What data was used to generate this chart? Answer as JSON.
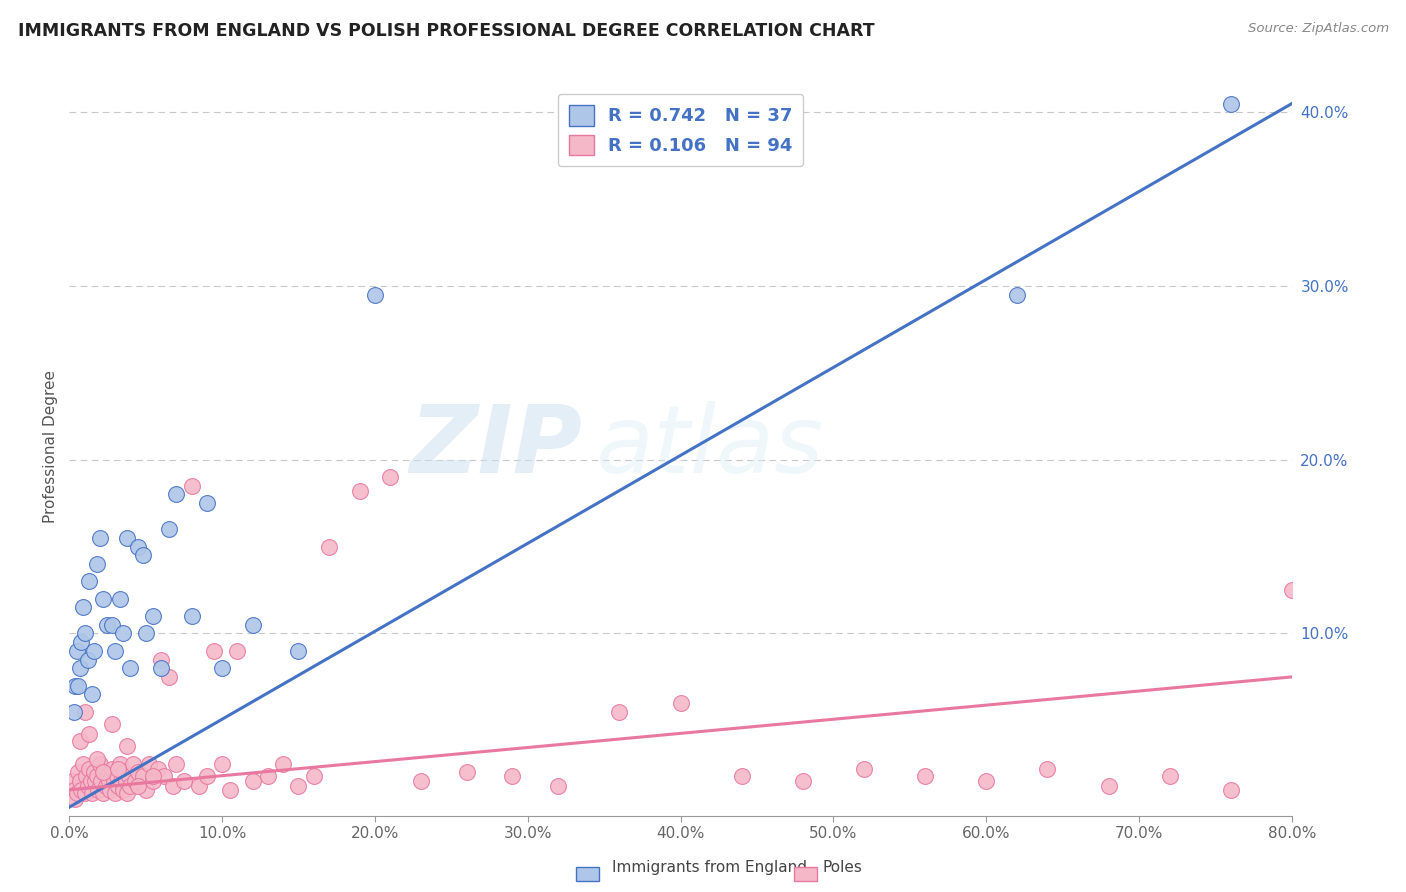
{
  "title": "IMMIGRANTS FROM ENGLAND VS POLISH PROFESSIONAL DEGREE CORRELATION CHART",
  "source": "Source: ZipAtlas.com",
  "ylabel": "Professional Degree",
  "watermark_zip": "ZIP",
  "watermark_atlas": "atlas",
  "xlim": [
    0.0,
    0.8
  ],
  "ylim": [
    -0.005,
    0.42
  ],
  "xtick_vals": [
    0.0,
    0.1,
    0.2,
    0.3,
    0.4,
    0.5,
    0.6,
    0.7,
    0.8
  ],
  "xtick_labels": [
    "0.0%",
    "10.0%",
    "20.0%",
    "30.0%",
    "40.0%",
    "50.0%",
    "60.0%",
    "70.0%",
    "80.0%"
  ],
  "ytick_vals": [
    0.0,
    0.1,
    0.2,
    0.3,
    0.4
  ],
  "ytick_labels": [
    "",
    "10.0%",
    "20.0%",
    "30.0%",
    "40.0%"
  ],
  "england_color": "#aec6e8",
  "england_edge_color": "#4472c4",
  "england_line_color": "#4472c4",
  "poles_color": "#f4b8c8",
  "poles_edge_color": "#e878a0",
  "poles_line_color": "#e878a0",
  "legend_text_color": "#4472c4",
  "r_england": 0.742,
  "n_england": 37,
  "r_poles": 0.106,
  "n_poles": 94,
  "eng_line_x": [
    0.0,
    0.8
  ],
  "eng_line_y": [
    0.0,
    0.405
  ],
  "pol_line_x": [
    0.0,
    0.8
  ],
  "pol_line_y": [
    0.01,
    0.075
  ],
  "england_scatter_x": [
    0.003,
    0.004,
    0.005,
    0.006,
    0.007,
    0.008,
    0.009,
    0.01,
    0.012,
    0.013,
    0.015,
    0.016,
    0.018,
    0.02,
    0.022,
    0.025,
    0.028,
    0.03,
    0.033,
    0.035,
    0.038,
    0.04,
    0.045,
    0.048,
    0.05,
    0.055,
    0.06,
    0.065,
    0.07,
    0.08,
    0.09,
    0.1,
    0.12,
    0.15,
    0.2,
    0.62,
    0.76
  ],
  "england_scatter_y": [
    0.055,
    0.07,
    0.09,
    0.07,
    0.08,
    0.095,
    0.115,
    0.1,
    0.085,
    0.13,
    0.065,
    0.09,
    0.14,
    0.155,
    0.12,
    0.105,
    0.105,
    0.09,
    0.12,
    0.1,
    0.155,
    0.08,
    0.15,
    0.145,
    0.1,
    0.11,
    0.08,
    0.16,
    0.18,
    0.11,
    0.175,
    0.08,
    0.105,
    0.09,
    0.295,
    0.295,
    0.405
  ],
  "poles_scatter_x": [
    0.002,
    0.003,
    0.004,
    0.005,
    0.006,
    0.007,
    0.008,
    0.009,
    0.01,
    0.011,
    0.012,
    0.013,
    0.014,
    0.015,
    0.016,
    0.017,
    0.018,
    0.019,
    0.02,
    0.021,
    0.022,
    0.023,
    0.024,
    0.025,
    0.026,
    0.027,
    0.028,
    0.029,
    0.03,
    0.031,
    0.032,
    0.033,
    0.034,
    0.035,
    0.036,
    0.037,
    0.038,
    0.039,
    0.04,
    0.042,
    0.043,
    0.045,
    0.048,
    0.05,
    0.052,
    0.055,
    0.058,
    0.06,
    0.062,
    0.065,
    0.068,
    0.07,
    0.075,
    0.08,
    0.085,
    0.09,
    0.095,
    0.1,
    0.105,
    0.11,
    0.12,
    0.13,
    0.14,
    0.15,
    0.16,
    0.17,
    0.19,
    0.21,
    0.23,
    0.26,
    0.29,
    0.32,
    0.36,
    0.4,
    0.44,
    0.48,
    0.52,
    0.56,
    0.6,
    0.64,
    0.68,
    0.72,
    0.76,
    0.8,
    0.007,
    0.01,
    0.013,
    0.018,
    0.022,
    0.028,
    0.032,
    0.038,
    0.045,
    0.055
  ],
  "poles_scatter_y": [
    0.015,
    0.01,
    0.005,
    0.008,
    0.02,
    0.015,
    0.01,
    0.025,
    0.008,
    0.018,
    0.012,
    0.022,
    0.015,
    0.008,
    0.02,
    0.015,
    0.018,
    0.01,
    0.025,
    0.015,
    0.008,
    0.02,
    0.012,
    0.018,
    0.015,
    0.01,
    0.022,
    0.015,
    0.008,
    0.018,
    0.012,
    0.025,
    0.015,
    0.01,
    0.02,
    0.015,
    0.008,
    0.018,
    0.012,
    0.025,
    0.015,
    0.02,
    0.018,
    0.01,
    0.025,
    0.015,
    0.022,
    0.085,
    0.018,
    0.075,
    0.012,
    0.025,
    0.015,
    0.185,
    0.012,
    0.018,
    0.09,
    0.025,
    0.01,
    0.09,
    0.015,
    0.018,
    0.025,
    0.012,
    0.018,
    0.15,
    0.182,
    0.19,
    0.015,
    0.02,
    0.018,
    0.012,
    0.055,
    0.06,
    0.018,
    0.015,
    0.022,
    0.018,
    0.015,
    0.022,
    0.012,
    0.018,
    0.01,
    0.125,
    0.038,
    0.055,
    0.042,
    0.028,
    0.02,
    0.048,
    0.022,
    0.035,
    0.012,
    0.018
  ]
}
